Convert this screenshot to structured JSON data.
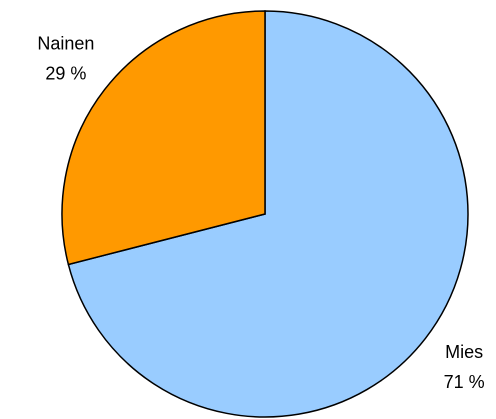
{
  "chart_data": {
    "type": "pie",
    "categories": [
      "Mies",
      "Nainen"
    ],
    "values": [
      71,
      29
    ],
    "value_labels": [
      "71 %",
      "29 %"
    ],
    "colors": [
      "#99ccff",
      "#ff9900"
    ]
  }
}
